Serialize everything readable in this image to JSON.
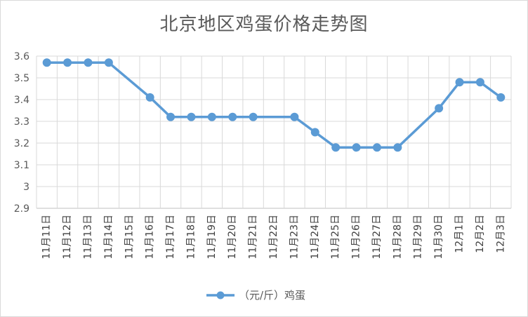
{
  "chart_data": {
    "type": "line",
    "title": "北京地区鸡蛋价格走势图",
    "categories": [
      "11月11日",
      "11月12日",
      "11月13日",
      "11月14日",
      "11月15日",
      "11月16日",
      "11月17日",
      "11月18日",
      "11月19日",
      "11月20日",
      "11月21日",
      "11月22日",
      "11月23日",
      "11月24日",
      "11月25日",
      "11月26日",
      "11月27日",
      "11月28日",
      "11月29日",
      "11月30日",
      "12月1日",
      "12月2日",
      "12月3日"
    ],
    "series": [
      {
        "name": "（元/斤）鸡蛋",
        "color": "#5b9bd5",
        "values": [
          3.57,
          3.57,
          3.57,
          3.57,
          null,
          3.41,
          3.32,
          3.32,
          3.32,
          3.32,
          3.32,
          null,
          3.32,
          3.25,
          3.18,
          3.18,
          3.18,
          3.18,
          null,
          3.36,
          3.48,
          3.48,
          3.41
        ]
      }
    ],
    "ylim": [
      2.9,
      3.6
    ],
    "yticks": [
      "2.9",
      "3",
      "3.1",
      "3.2",
      "3.3",
      "3.4",
      "3.5",
      "3.6"
    ],
    "grid": true,
    "legend": "bottom"
  }
}
